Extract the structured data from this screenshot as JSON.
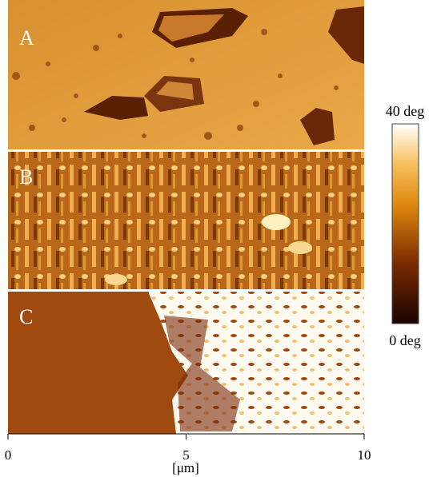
{
  "panels": [
    {
      "label": "A"
    },
    {
      "label": "B"
    },
    {
      "label": "C"
    }
  ],
  "colorbar": {
    "top_label": "40 deg",
    "bottom_label": "0 deg"
  },
  "axis": {
    "label": "[μm]",
    "xlim": [
      0,
      10
    ],
    "xticks": [
      0,
      5,
      10
    ]
  }
}
